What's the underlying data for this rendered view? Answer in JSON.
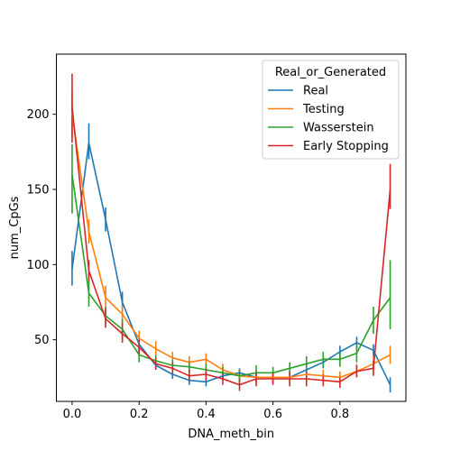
{
  "chart_data": {
    "type": "line",
    "title": "",
    "xlabel": "DNA_meth_bin",
    "ylabel": "num_CpGs",
    "xlim": [
      -0.047,
      0.997
    ],
    "ylim": [
      9,
      240
    ],
    "xticks": [
      0.0,
      0.2,
      0.4,
      0.6,
      0.8
    ],
    "xtick_labels": [
      "0.0",
      "0.2",
      "0.4",
      "0.6",
      "0.8"
    ],
    "yticks": [
      50,
      100,
      150,
      200
    ],
    "ytick_labels": [
      "50",
      "100",
      "150",
      "200"
    ],
    "grid": false,
    "legend": {
      "title": "Real_or_Generated",
      "placement": "top-right"
    },
    "x": [
      0.0,
      0.05,
      0.1,
      0.15,
      0.2,
      0.25,
      0.3,
      0.35,
      0.4,
      0.45,
      0.5,
      0.55,
      0.6,
      0.65,
      0.7,
      0.75,
      0.8,
      0.85,
      0.9,
      0.95
    ],
    "series": [
      {
        "name": "Real",
        "color": "#1f77b4",
        "values": [
          97,
          181,
          130,
          75,
          47,
          33,
          27,
          23,
          22,
          26,
          28,
          25,
          25,
          25,
          30,
          35,
          42,
          48,
          43,
          20
        ],
        "err_low": [
          86,
          170,
          122,
          69,
          43,
          30,
          24,
          20,
          19,
          23,
          25,
          22,
          22,
          22,
          27,
          31,
          38,
          44,
          39,
          15
        ],
        "err_high": [
          109,
          194,
          138,
          82,
          52,
          37,
          31,
          26,
          25,
          29,
          31,
          28,
          28,
          28,
          34,
          39,
          46,
          52,
          47,
          25
        ]
      },
      {
        "name": "Testing",
        "color": "#ff7f0e",
        "values": [
          201,
          122,
          78,
          67,
          51,
          44,
          38,
          35,
          37,
          30,
          26,
          25,
          25,
          25,
          27,
          26,
          25,
          29,
          34,
          40
        ],
        "err_low": [
          184,
          114,
          72,
          60,
          46,
          40,
          34,
          31,
          33,
          26,
          22,
          21,
          21,
          21,
          23,
          22,
          21,
          25,
          29,
          34
        ],
        "err_high": [
          216,
          130,
          86,
          73,
          56,
          49,
          42,
          39,
          41,
          34,
          30,
          29,
          29,
          29,
          31,
          30,
          29,
          34,
          39,
          46
        ]
      },
      {
        "name": "Wasserstein",
        "color": "#2ca02c",
        "values": [
          160,
          81,
          66,
          57,
          40,
          36,
          33,
          32,
          30,
          28,
          26,
          28,
          28,
          31,
          34,
          37,
          37,
          41,
          63,
          78
        ],
        "err_low": [
          134,
          72,
          60,
          50,
          35,
          32,
          29,
          28,
          26,
          24,
          22,
          23,
          24,
          27,
          29,
          32,
          32,
          35,
          54,
          57
        ],
        "err_high": [
          180,
          89,
          72,
          64,
          45,
          40,
          37,
          36,
          34,
          32,
          30,
          33,
          32,
          35,
          39,
          42,
          42,
          47,
          72,
          103
        ]
      },
      {
        "name": "Early Stopping",
        "color": "#d62728",
        "values": [
          205,
          96,
          64,
          54,
          45,
          34,
          31,
          26,
          27,
          24,
          20,
          24,
          24,
          24,
          24,
          23,
          22,
          29,
          31,
          150
        ],
        "err_low": [
          181,
          89,
          58,
          48,
          40,
          30,
          27,
          22,
          23,
          20,
          16,
          19,
          20,
          19,
          19,
          19,
          18,
          25,
          26,
          137
        ],
        "err_high": [
          227,
          103,
          71,
          61,
          50,
          38,
          35,
          30,
          31,
          28,
          24,
          29,
          28,
          29,
          29,
          27,
          26,
          33,
          36,
          167
        ]
      }
    ]
  }
}
